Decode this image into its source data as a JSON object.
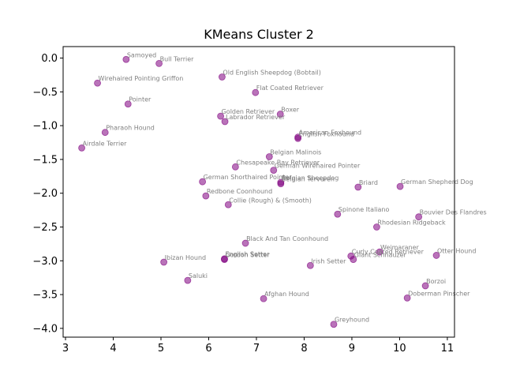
{
  "chart_data": {
    "type": "scatter",
    "title": "KMeans Cluster 2",
    "xlabel": "",
    "ylabel": "",
    "xlim": [
      2.95,
      11.15
    ],
    "ylim": [
      -4.13,
      0.17
    ],
    "xticks": [
      3,
      4,
      5,
      6,
      7,
      8,
      9,
      10,
      11
    ],
    "yticks": [
      0.0,
      -0.5,
      -1.0,
      -1.5,
      -2.0,
      -2.5,
      -3.0,
      -3.5,
      -4.0
    ],
    "xtick_labels": [
      "3",
      "4",
      "5",
      "6",
      "7",
      "8",
      "9",
      "10",
      "11"
    ],
    "ytick_labels": [
      "0.0",
      "−0.5",
      "−1.0",
      "−1.5",
      "−2.0",
      "−2.5",
      "−3.0",
      "−3.5",
      "−4.0"
    ],
    "grid": false,
    "marker_color": "#800080",
    "label_color": "#808080",
    "points": [
      {
        "label": "Samoyed",
        "x": 4.27,
        "y": -0.02
      },
      {
        "label": "Bull Terrier",
        "x": 4.96,
        "y": -0.08
      },
      {
        "label": "Wirehaired Pointing Griffon",
        "x": 3.67,
        "y": -0.37
      },
      {
        "label": "Old English Sheepdog (Bobtail)",
        "x": 6.28,
        "y": -0.28
      },
      {
        "label": "Flat Coated Retriever",
        "x": 6.98,
        "y": -0.51
      },
      {
        "label": "Pointer",
        "x": 4.31,
        "y": -0.68
      },
      {
        "label": "Golden Retriever",
        "x": 6.25,
        "y": -0.86
      },
      {
        "label": "Labrador Retriever",
        "x": 6.34,
        "y": -0.94
      },
      {
        "label": "Boxer",
        "x": 7.5,
        "y": -0.83
      },
      {
        "label": "Pharaoh Hound",
        "x": 3.83,
        "y": -1.1
      },
      {
        "label": "American Foxhound",
        "x": 7.87,
        "y": -1.17
      },
      {
        "label": "English Foxhound",
        "x": 7.87,
        "y": -1.19
      },
      {
        "label": "Airdale Terrier",
        "x": 3.34,
        "y": -1.33
      },
      {
        "label": "Belgian Malinois",
        "x": 7.27,
        "y": -1.46
      },
      {
        "label": "Chesapeake Bay Retriever",
        "x": 6.56,
        "y": -1.61
      },
      {
        "label": "German Wirehaired Pointer",
        "x": 7.36,
        "y": -1.66
      },
      {
        "label": "German Shorthaired Pointer",
        "x": 5.87,
        "y": -1.83
      },
      {
        "label": "Belgian Sheepdog",
        "x": 7.51,
        "y": -1.84
      },
      {
        "label": "Belgian Tervuren",
        "x": 7.51,
        "y": -1.86
      },
      {
        "label": "Briard",
        "x": 9.13,
        "y": -1.91
      },
      {
        "label": "German Shepherd Dog",
        "x": 10.01,
        "y": -1.9
      },
      {
        "label": "Redbone Coonhound",
        "x": 5.94,
        "y": -2.04
      },
      {
        "label": "Collie (Rough) & (Smooth)",
        "x": 6.41,
        "y": -2.17
      },
      {
        "label": "Spinone Italiano",
        "x": 8.7,
        "y": -2.31
      },
      {
        "label": "Bouvier Des Flandres",
        "x": 10.4,
        "y": -2.35
      },
      {
        "label": "Rhodesian Ridgeback",
        "x": 9.52,
        "y": -2.5
      },
      {
        "label": "Black And Tan Coonhound",
        "x": 6.77,
        "y": -2.74
      },
      {
        "label": "Weimaraner",
        "x": 9.58,
        "y": -2.87
      },
      {
        "label": "Otter Hound",
        "x": 10.77,
        "y": -2.92
      },
      {
        "label": "Curly Coated Retriever",
        "x": 8.98,
        "y": -2.93
      },
      {
        "label": "Giant Schnauzer",
        "x": 9.03,
        "y": -2.98
      },
      {
        "label": "English Setter",
        "x": 6.33,
        "y": -2.97
      },
      {
        "label": "Gordon Setter",
        "x": 6.33,
        "y": -2.98
      },
      {
        "label": "Ibizan Hound",
        "x": 5.06,
        "y": -3.02
      },
      {
        "label": "Irish Setter",
        "x": 8.13,
        "y": -3.07
      },
      {
        "label": "Saluki",
        "x": 5.56,
        "y": -3.29
      },
      {
        "label": "Borzoi",
        "x": 10.54,
        "y": -3.37
      },
      {
        "label": "Afghan Hound",
        "x": 7.15,
        "y": -3.56
      },
      {
        "label": "Doberman Pinscher",
        "x": 10.16,
        "y": -3.55
      },
      {
        "label": "Greyhound",
        "x": 8.62,
        "y": -3.94
      }
    ]
  }
}
